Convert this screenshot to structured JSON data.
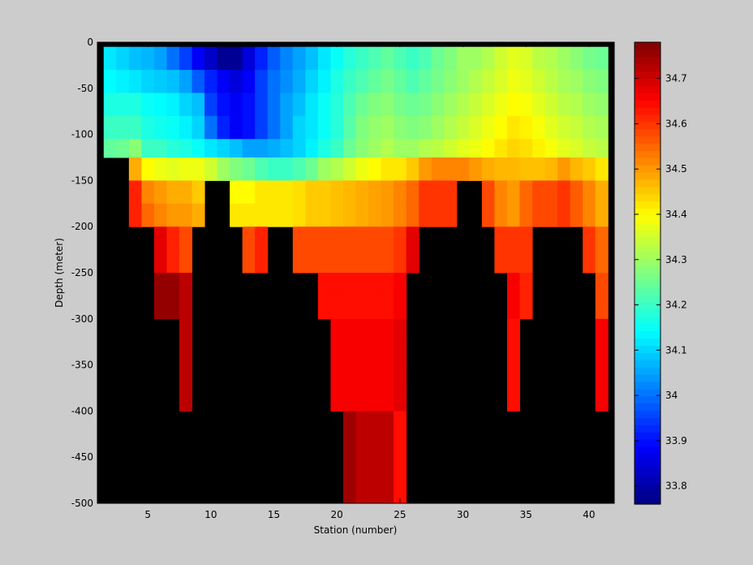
{
  "chart_data": {
    "type": "heatmap",
    "xlabel": "Station (number)",
    "ylabel": "Depth (meter)",
    "xlim": [
      1,
      42
    ],
    "ylim": [
      -500,
      0
    ],
    "xticks": [
      5,
      10,
      15,
      20,
      25,
      30,
      35,
      40
    ],
    "yticks": [
      0,
      -50,
      -100,
      -150,
      -200,
      -250,
      -300,
      -350,
      -400,
      -450,
      -500
    ],
    "depth_bins": [
      -5,
      -30,
      -55,
      -80,
      -105,
      -125,
      -150,
      -175,
      -200,
      -225,
      -250,
      -275,
      -300,
      -325,
      -350,
      -375,
      -400,
      -425,
      -450,
      -475,
      -500
    ],
    "nodata_value": null,
    "nodata_color": "#000000",
    "colorbar": {
      "range": [
        33.76,
        34.78
      ],
      "ticks": [
        33.8,
        33.9,
        34,
        34.1,
        34.2,
        34.3,
        34.4,
        34.5,
        34.6,
        34.7
      ],
      "colormap": "jet"
    },
    "stations": [
      {
        "station": 2,
        "salinity": [
          34.12,
          34.14,
          34.17,
          34.2,
          34.24,
          null,
          null,
          null,
          null,
          null,
          null,
          null,
          null,
          null,
          null,
          null,
          null,
          null,
          null,
          null,
          null
        ]
      },
      {
        "station": 3,
        "salinity": [
          34.1,
          34.13,
          34.17,
          34.2,
          34.25,
          null,
          null,
          null,
          null,
          null,
          null,
          null,
          null,
          null,
          null,
          null,
          null,
          null,
          null,
          null,
          null
        ]
      },
      {
        "station": 4,
        "salinity": [
          34.08,
          34.12,
          34.17,
          34.2,
          34.28,
          34.48,
          34.62,
          34.62,
          null,
          null,
          null,
          null,
          null,
          null,
          null,
          null,
          null,
          null,
          null,
          null,
          null
        ]
      },
      {
        "station": 5,
        "salinity": [
          34.07,
          34.1,
          34.15,
          34.17,
          34.2,
          34.4,
          34.52,
          34.55,
          null,
          null,
          null,
          null,
          null,
          null,
          null,
          null,
          null,
          null,
          null,
          null,
          null
        ]
      },
      {
        "station": 6,
        "salinity": [
          34.05,
          34.09,
          34.14,
          34.16,
          34.2,
          34.38,
          34.5,
          34.52,
          34.68,
          34.68,
          34.76,
          34.76,
          null,
          null,
          null,
          null,
          null,
          null,
          null,
          null,
          null
        ]
      },
      {
        "station": 7,
        "salinity": [
          34.0,
          34.08,
          34.13,
          34.15,
          34.18,
          34.37,
          34.48,
          34.5,
          34.62,
          34.62,
          34.76,
          34.76,
          null,
          null,
          null,
          null,
          null,
          null,
          null,
          null,
          null
        ]
      },
      {
        "station": 8,
        "salinity": [
          33.95,
          34.05,
          34.1,
          34.13,
          34.17,
          34.38,
          34.48,
          34.5,
          34.58,
          34.58,
          34.72,
          34.72,
          34.72,
          34.72,
          34.72,
          34.72,
          null,
          null,
          null,
          null,
          null
        ]
      },
      {
        "station": 9,
        "salinity": [
          33.88,
          33.98,
          34.08,
          34.1,
          34.15,
          34.38,
          34.45,
          34.48,
          null,
          null,
          null,
          null,
          null,
          null,
          null,
          null,
          null,
          null,
          null,
          null,
          null
        ]
      },
      {
        "station": 10,
        "salinity": [
          33.83,
          33.92,
          33.95,
          34.0,
          34.12,
          34.35,
          null,
          null,
          null,
          null,
          null,
          null,
          null,
          null,
          null,
          null,
          null,
          null,
          null,
          null,
          null
        ]
      },
      {
        "station": 11,
        "salinity": [
          33.78,
          33.88,
          33.9,
          33.92,
          34.1,
          34.3,
          null,
          null,
          null,
          null,
          null,
          null,
          null,
          null,
          null,
          null,
          null,
          null,
          null,
          null,
          null
        ]
      },
      {
        "station": 12,
        "salinity": [
          33.78,
          33.85,
          33.88,
          33.88,
          34.08,
          34.27,
          34.4,
          34.42,
          null,
          null,
          null,
          null,
          null,
          null,
          null,
          null,
          null,
          null,
          null,
          null,
          null
        ]
      },
      {
        "station": 13,
        "salinity": [
          33.85,
          33.88,
          33.9,
          33.9,
          34.05,
          34.25,
          34.4,
          34.42,
          34.58,
          34.58,
          null,
          null,
          null,
          null,
          null,
          null,
          null,
          null,
          null,
          null,
          null
        ]
      },
      {
        "station": 14,
        "salinity": [
          33.92,
          33.95,
          33.95,
          33.95,
          34.05,
          34.22,
          34.42,
          34.42,
          34.62,
          34.62,
          null,
          null,
          null,
          null,
          null,
          null,
          null,
          null,
          null,
          null,
          null
        ]
      },
      {
        "station": 15,
        "salinity": [
          33.98,
          34.0,
          34.0,
          34.0,
          34.06,
          34.2,
          34.42,
          34.42,
          null,
          null,
          null,
          null,
          null,
          null,
          null,
          null,
          null,
          null,
          null,
          null,
          null
        ]
      },
      {
        "station": 16,
        "salinity": [
          34.02,
          34.03,
          34.05,
          34.05,
          34.08,
          34.2,
          34.42,
          34.42,
          null,
          null,
          null,
          null,
          null,
          null,
          null,
          null,
          null,
          null,
          null,
          null,
          null
        ]
      },
      {
        "station": 17,
        "salinity": [
          34.05,
          34.06,
          34.08,
          34.1,
          34.1,
          34.22,
          34.43,
          34.43,
          34.58,
          34.58,
          null,
          null,
          null,
          null,
          null,
          null,
          null,
          null,
          null,
          null,
          null
        ]
      },
      {
        "station": 18,
        "salinity": [
          34.08,
          34.1,
          34.12,
          34.12,
          34.13,
          34.25,
          34.45,
          34.45,
          34.58,
          34.58,
          null,
          null,
          null,
          null,
          null,
          null,
          null,
          null,
          null,
          null,
          null
        ]
      },
      {
        "station": 19,
        "salinity": [
          34.12,
          34.13,
          34.15,
          34.15,
          34.17,
          34.3,
          34.45,
          34.45,
          34.58,
          34.58,
          34.64,
          34.64,
          null,
          null,
          null,
          null,
          null,
          null,
          null,
          null,
          null
        ]
      },
      {
        "station": 20,
        "salinity": [
          34.15,
          34.17,
          34.18,
          34.18,
          34.2,
          34.32,
          34.46,
          34.46,
          34.58,
          34.58,
          34.64,
          34.64,
          34.66,
          34.66,
          34.66,
          34.66,
          null,
          null,
          null,
          null,
          null
        ]
      },
      {
        "station": 21,
        "salinity": [
          34.18,
          34.2,
          34.22,
          34.23,
          34.25,
          34.35,
          34.47,
          34.47,
          34.58,
          34.58,
          34.64,
          34.64,
          34.66,
          34.66,
          34.66,
          34.66,
          34.75,
          34.75,
          34.75,
          34.75,
          null
        ]
      },
      {
        "station": 22,
        "salinity": [
          34.2,
          34.22,
          34.25,
          34.27,
          34.28,
          34.38,
          34.48,
          34.48,
          34.58,
          34.58,
          34.64,
          34.64,
          34.66,
          34.66,
          34.66,
          34.66,
          34.72,
          34.72,
          34.72,
          34.72,
          null
        ]
      },
      {
        "station": 23,
        "salinity": [
          34.22,
          34.24,
          34.27,
          34.29,
          34.3,
          34.4,
          34.49,
          34.49,
          34.58,
          34.58,
          34.64,
          34.64,
          34.66,
          34.66,
          34.66,
          34.66,
          34.72,
          34.72,
          34.72,
          34.72,
          null
        ]
      },
      {
        "station": 24,
        "salinity": [
          34.24,
          34.26,
          34.28,
          34.3,
          34.32,
          34.42,
          34.5,
          34.5,
          34.58,
          34.58,
          34.64,
          34.64,
          34.66,
          34.66,
          34.66,
          34.66,
          34.72,
          34.72,
          34.72,
          34.72,
          null
        ]
      },
      {
        "station": 25,
        "salinity": [
          34.22,
          34.24,
          34.26,
          34.28,
          34.3,
          34.42,
          34.52,
          34.52,
          34.6,
          34.6,
          34.66,
          34.66,
          34.68,
          34.68,
          34.68,
          34.68,
          34.64,
          34.64,
          34.64,
          34.64,
          null
        ]
      },
      {
        "station": 26,
        "salinity": [
          34.2,
          34.22,
          34.25,
          34.27,
          34.3,
          34.45,
          34.55,
          34.55,
          34.68,
          34.68,
          null,
          null,
          null,
          null,
          null,
          null,
          null,
          null,
          null,
          null,
          null
        ]
      },
      {
        "station": 27,
        "salinity": [
          34.22,
          34.24,
          34.26,
          34.28,
          34.32,
          34.5,
          34.6,
          34.6,
          null,
          null,
          null,
          null,
          null,
          null,
          null,
          null,
          null,
          null,
          null,
          null,
          null
        ]
      },
      {
        "station": 28,
        "salinity": [
          34.25,
          34.26,
          34.28,
          34.3,
          34.33,
          34.52,
          34.6,
          34.6,
          null,
          null,
          null,
          null,
          null,
          null,
          null,
          null,
          null,
          null,
          null,
          null,
          null
        ]
      },
      {
        "station": 29,
        "salinity": [
          34.27,
          34.28,
          34.3,
          34.32,
          34.35,
          34.52,
          34.6,
          34.6,
          null,
          null,
          null,
          null,
          null,
          null,
          null,
          null,
          null,
          null,
          null,
          null,
          null
        ]
      },
      {
        "station": 30,
        "salinity": [
          34.3,
          34.3,
          34.32,
          34.34,
          34.37,
          34.52,
          null,
          null,
          null,
          null,
          null,
          null,
          null,
          null,
          null,
          null,
          null,
          null,
          null,
          null,
          null
        ]
      },
      {
        "station": 31,
        "salinity": [
          34.3,
          34.32,
          34.34,
          34.36,
          34.38,
          34.5,
          null,
          null,
          null,
          null,
          null,
          null,
          null,
          null,
          null,
          null,
          null,
          null,
          null,
          null,
          null
        ]
      },
      {
        "station": 32,
        "salinity": [
          34.32,
          34.34,
          34.36,
          34.38,
          34.4,
          34.48,
          34.58,
          34.58,
          null,
          null,
          null,
          null,
          null,
          null,
          null,
          null,
          null,
          null,
          null,
          null,
          null
        ]
      },
      {
        "station": 33,
        "salinity": [
          34.35,
          34.36,
          34.38,
          34.4,
          34.42,
          34.47,
          34.52,
          34.52,
          34.6,
          34.6,
          null,
          null,
          null,
          null,
          null,
          null,
          null,
          null,
          null,
          null,
          null
        ]
      },
      {
        "station": 34,
        "salinity": [
          34.37,
          34.38,
          34.4,
          34.42,
          34.44,
          34.47,
          34.5,
          34.5,
          34.6,
          34.6,
          34.66,
          34.66,
          34.64,
          34.64,
          34.64,
          34.64,
          null,
          null,
          null,
          null,
          null
        ]
      },
      {
        "station": 35,
        "salinity": [
          34.36,
          34.37,
          34.39,
          34.41,
          34.43,
          34.46,
          34.55,
          34.55,
          34.6,
          34.6,
          34.62,
          34.62,
          null,
          null,
          null,
          null,
          null,
          null,
          null,
          null,
          null
        ]
      },
      {
        "station": 36,
        "salinity": [
          34.33,
          34.35,
          34.37,
          34.39,
          34.41,
          34.46,
          34.58,
          34.58,
          null,
          null,
          null,
          null,
          null,
          null,
          null,
          null,
          null,
          null,
          null,
          null,
          null
        ]
      },
      {
        "station": 37,
        "salinity": [
          34.32,
          34.33,
          34.35,
          34.37,
          34.39,
          34.47,
          34.58,
          34.58,
          null,
          null,
          null,
          null,
          null,
          null,
          null,
          null,
          null,
          null,
          null,
          null,
          null
        ]
      },
      {
        "station": 38,
        "salinity": [
          34.3,
          34.31,
          34.33,
          34.35,
          34.37,
          34.5,
          34.6,
          34.6,
          null,
          null,
          null,
          null,
          null,
          null,
          null,
          null,
          null,
          null,
          null,
          null,
          null
        ]
      },
      {
        "station": 39,
        "salinity": [
          34.28,
          34.3,
          34.32,
          34.34,
          34.36,
          34.47,
          34.56,
          34.56,
          null,
          null,
          null,
          null,
          null,
          null,
          null,
          null,
          null,
          null,
          null,
          null,
          null
        ]
      },
      {
        "station": 40,
        "salinity": [
          34.26,
          34.28,
          34.3,
          34.32,
          34.34,
          34.45,
          34.52,
          34.52,
          34.6,
          34.6,
          null,
          null,
          null,
          null,
          null,
          null,
          null,
          null,
          null,
          null,
          null
        ]
      },
      {
        "station": 41,
        "salinity": [
          34.25,
          34.27,
          34.29,
          34.31,
          34.33,
          34.42,
          34.48,
          34.48,
          34.55,
          34.55,
          34.58,
          34.58,
          34.66,
          34.66,
          34.66,
          34.66,
          null,
          null,
          null,
          null,
          null
        ]
      }
    ]
  }
}
